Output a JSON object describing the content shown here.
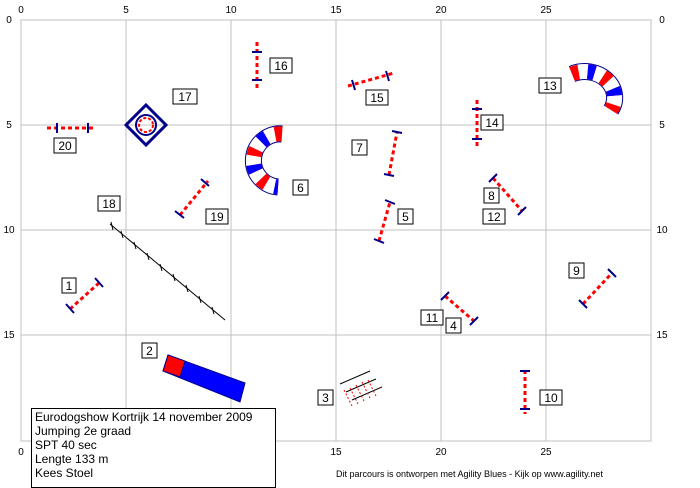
{
  "grid": {
    "x_ticks": [
      "0",
      "5",
      "10",
      "15",
      "20",
      "25"
    ],
    "y_ticks": [
      "0",
      "5",
      "10",
      "15"
    ]
  },
  "obstacles": [
    {
      "id": "1",
      "kind": "jump"
    },
    {
      "id": "2",
      "kind": "tunnel"
    },
    {
      "id": "3",
      "kind": "weave"
    },
    {
      "id": "4",
      "kind": "jump"
    },
    {
      "id": "5",
      "kind": "jump"
    },
    {
      "id": "6",
      "kind": "tunnel"
    },
    {
      "id": "7",
      "kind": "jump"
    },
    {
      "id": "8",
      "kind": "jump"
    },
    {
      "id": "9",
      "kind": "jump"
    },
    {
      "id": "10",
      "kind": "jump"
    },
    {
      "id": "11",
      "kind": "jump"
    },
    {
      "id": "12",
      "kind": "jump"
    },
    {
      "id": "13",
      "kind": "tunnel"
    },
    {
      "id": "14",
      "kind": "jump"
    },
    {
      "id": "15",
      "kind": "jump"
    },
    {
      "id": "16",
      "kind": "jump"
    },
    {
      "id": "17",
      "kind": "tire"
    },
    {
      "id": "18",
      "kind": "dogwalk"
    },
    {
      "id": "19",
      "kind": "jump"
    },
    {
      "id": "20",
      "kind": "jump"
    }
  ],
  "info": {
    "line1": "Eurodogshow Kortrijk 14 november 2009",
    "line2": "Jumping 2e graad",
    "line3": "SPT 40 sec",
    "line4": "Lengte 133 m",
    "line5": "Kees Stoel"
  },
  "footer": "Dit parcours is ontworpen met Agility Blues - Kijk op www.agility.net",
  "colors": {
    "grid": "#c0c0c0",
    "bar_red": "#ff0000",
    "stand_blue": "#00008b",
    "tunnel_blue": "#0000ff"
  }
}
